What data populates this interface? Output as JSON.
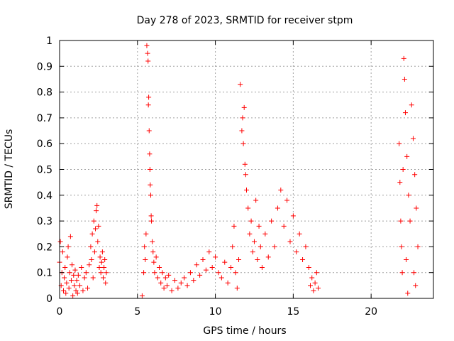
{
  "chart_data": {
    "type": "scatter",
    "title": "Day 278 of 2023, SRMTID for receiver stpm",
    "xlabel": "GPS time / hours",
    "ylabel": "SRMTID / TECUs",
    "xlim": [
      0,
      24
    ],
    "ylim": [
      0,
      1
    ],
    "x_ticks": [
      0,
      5,
      10,
      15,
      20
    ],
    "x_tick_labels": [
      "0",
      "5",
      "10",
      "15",
      "20"
    ],
    "y_ticks": [
      0,
      0.1,
      0.2,
      0.3,
      0.4,
      0.5,
      0.6,
      0.7,
      0.8,
      0.9,
      1
    ],
    "y_tick_labels": [
      "0",
      "0.1",
      "0.2",
      "0.3",
      "0.4",
      "0.5",
      "0.6",
      "0.7",
      "0.8",
      "0.9",
      "1"
    ],
    "grid": true,
    "marker": "+",
    "color": "#ff0000",
    "series": [
      {
        "name": "SRMTID",
        "points": [
          [
            0.0,
            0.14
          ],
          [
            0.05,
            0.22
          ],
          [
            0.1,
            0.05
          ],
          [
            0.15,
            0.1
          ],
          [
            0.2,
            0.18
          ],
          [
            0.25,
            0.03
          ],
          [
            0.3,
            0.08
          ],
          [
            0.35,
            0.12
          ],
          [
            0.4,
            0.02
          ],
          [
            0.45,
            0.06
          ],
          [
            0.5,
            0.16
          ],
          [
            0.55,
            0.2
          ],
          [
            0.6,
            0.04
          ],
          [
            0.65,
            0.1
          ],
          [
            0.7,
            0.24
          ],
          [
            0.75,
            0.07
          ],
          [
            0.8,
            0.13
          ],
          [
            0.85,
            0.01
          ],
          [
            0.9,
            0.09
          ],
          [
            0.95,
            0.05
          ],
          [
            1.0,
            0.11
          ],
          [
            1.05,
            0.03
          ],
          [
            1.1,
            0.07
          ],
          [
            1.15,
            0.02
          ],
          [
            1.2,
            0.09
          ],
          [
            1.3,
            0.05
          ],
          [
            1.4,
            0.12
          ],
          [
            1.5,
            0.03
          ],
          [
            1.6,
            0.08
          ],
          [
            1.7,
            0.1
          ],
          [
            1.8,
            0.04
          ],
          [
            1.9,
            0.13
          ],
          [
            2.0,
            0.2
          ],
          [
            2.05,
            0.15
          ],
          [
            2.1,
            0.25
          ],
          [
            2.15,
            0.08
          ],
          [
            2.2,
            0.3
          ],
          [
            2.25,
            0.18
          ],
          [
            2.3,
            0.27
          ],
          [
            2.35,
            0.34
          ],
          [
            2.4,
            0.36
          ],
          [
            2.45,
            0.22
          ],
          [
            2.5,
            0.28
          ],
          [
            2.55,
            0.12
          ],
          [
            2.6,
            0.16
          ],
          [
            2.65,
            0.1
          ],
          [
            2.7,
            0.14
          ],
          [
            2.75,
            0.18
          ],
          [
            2.8,
            0.08
          ],
          [
            2.85,
            0.12
          ],
          [
            2.9,
            0.15
          ],
          [
            2.95,
            0.06
          ],
          [
            3.0,
            0.1
          ],
          [
            5.3,
            0.01
          ],
          [
            5.4,
            0.1
          ],
          [
            5.45,
            0.2
          ],
          [
            5.5,
            0.15
          ],
          [
            5.55,
            0.25
          ],
          [
            5.6,
            0.98
          ],
          [
            5.65,
            0.95
          ],
          [
            5.68,
            0.92
          ],
          [
            5.7,
            0.75
          ],
          [
            5.72,
            0.78
          ],
          [
            5.75,
            0.65
          ],
          [
            5.78,
            0.56
          ],
          [
            5.8,
            0.5
          ],
          [
            5.82,
            0.44
          ],
          [
            5.85,
            0.4
          ],
          [
            5.88,
            0.32
          ],
          [
            5.9,
            0.3
          ],
          [
            5.95,
            0.22
          ],
          [
            6.0,
            0.18
          ],
          [
            6.05,
            0.14
          ],
          [
            6.1,
            0.1
          ],
          [
            6.2,
            0.16
          ],
          [
            6.3,
            0.08
          ],
          [
            6.4,
            0.12
          ],
          [
            6.5,
            0.06
          ],
          [
            6.6,
            0.1
          ],
          [
            6.7,
            0.04
          ],
          [
            6.8,
            0.08
          ],
          [
            6.9,
            0.05
          ],
          [
            7.0,
            0.09
          ],
          [
            7.2,
            0.03
          ],
          [
            7.4,
            0.07
          ],
          [
            7.6,
            0.04
          ],
          [
            7.8,
            0.06
          ],
          [
            8.0,
            0.08
          ],
          [
            8.2,
            0.05
          ],
          [
            8.4,
            0.1
          ],
          [
            8.6,
            0.07
          ],
          [
            8.8,
            0.13
          ],
          [
            9.0,
            0.09
          ],
          [
            9.2,
            0.15
          ],
          [
            9.4,
            0.11
          ],
          [
            9.6,
            0.18
          ],
          [
            9.8,
            0.12
          ],
          [
            10.0,
            0.16
          ],
          [
            10.2,
            0.1
          ],
          [
            10.4,
            0.08
          ],
          [
            10.6,
            0.14
          ],
          [
            10.8,
            0.06
          ],
          [
            11.0,
            0.12
          ],
          [
            11.1,
            0.2
          ],
          [
            11.2,
            0.28
          ],
          [
            11.3,
            0.1
          ],
          [
            11.4,
            0.04
          ],
          [
            11.5,
            0.15
          ],
          [
            11.6,
            0.83
          ],
          [
            11.7,
            0.65
          ],
          [
            11.75,
            0.7
          ],
          [
            11.8,
            0.6
          ],
          [
            11.85,
            0.74
          ],
          [
            11.9,
            0.52
          ],
          [
            11.95,
            0.48
          ],
          [
            12.0,
            0.42
          ],
          [
            12.1,
            0.35
          ],
          [
            12.2,
            0.25
          ],
          [
            12.3,
            0.3
          ],
          [
            12.4,
            0.18
          ],
          [
            12.5,
            0.22
          ],
          [
            12.6,
            0.38
          ],
          [
            12.7,
            0.15
          ],
          [
            12.8,
            0.28
          ],
          [
            12.9,
            0.2
          ],
          [
            13.0,
            0.12
          ],
          [
            13.2,
            0.25
          ],
          [
            13.4,
            0.16
          ],
          [
            13.6,
            0.3
          ],
          [
            13.8,
            0.2
          ],
          [
            14.0,
            0.35
          ],
          [
            14.2,
            0.42
          ],
          [
            14.4,
            0.28
          ],
          [
            14.6,
            0.38
          ],
          [
            14.8,
            0.22
          ],
          [
            15.0,
            0.32
          ],
          [
            15.2,
            0.18
          ],
          [
            15.4,
            0.25
          ],
          [
            15.6,
            0.15
          ],
          [
            15.8,
            0.2
          ],
          [
            16.0,
            0.12
          ],
          [
            16.1,
            0.05
          ],
          [
            16.2,
            0.08
          ],
          [
            16.3,
            0.03
          ],
          [
            16.4,
            0.06
          ],
          [
            16.5,
            0.1
          ],
          [
            16.6,
            0.04
          ],
          [
            21.8,
            0.6
          ],
          [
            21.85,
            0.45
          ],
          [
            21.9,
            0.3
          ],
          [
            21.95,
            0.2
          ],
          [
            22.0,
            0.1
          ],
          [
            22.05,
            0.5
          ],
          [
            22.1,
            0.93
          ],
          [
            22.15,
            0.85
          ],
          [
            22.2,
            0.72
          ],
          [
            22.3,
            0.55
          ],
          [
            22.4,
            0.4
          ],
          [
            22.5,
            0.3
          ],
          [
            22.6,
            0.75
          ],
          [
            22.7,
            0.62
          ],
          [
            22.8,
            0.48
          ],
          [
            22.9,
            0.35
          ],
          [
            23.0,
            0.2
          ],
          [
            22.85,
            0.05
          ],
          [
            22.75,
            0.1
          ],
          [
            22.35,
            0.02
          ],
          [
            22.25,
            0.15
          ]
        ]
      }
    ]
  }
}
